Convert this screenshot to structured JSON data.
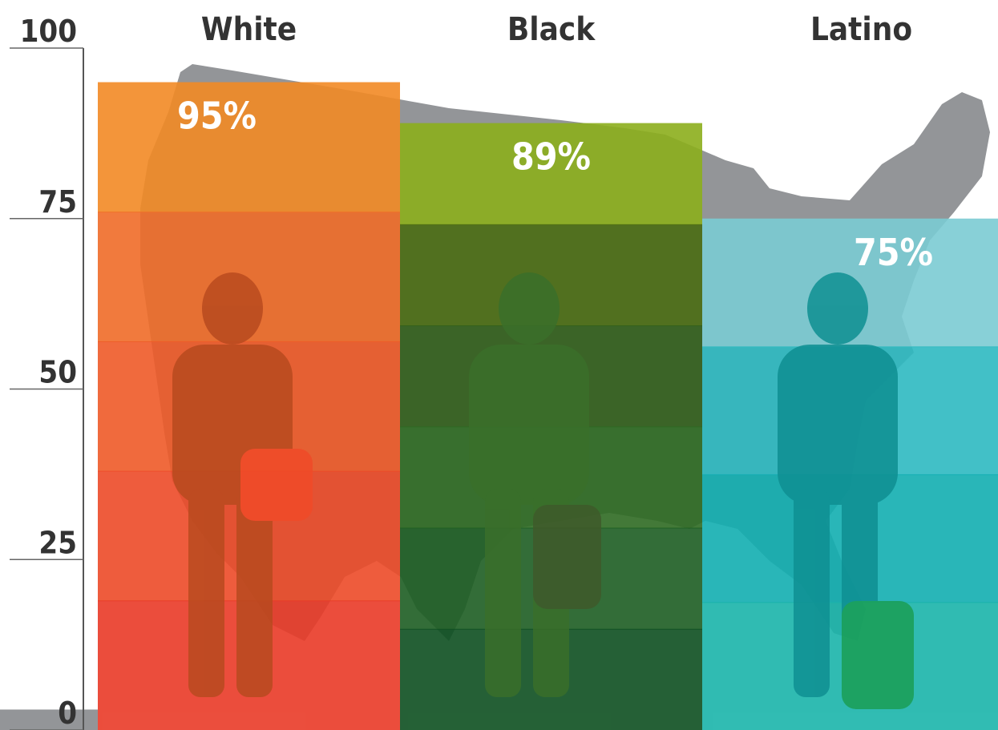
{
  "chart_data": {
    "type": "bar",
    "categories": [
      "White",
      "Black",
      "Latino"
    ],
    "values": [
      95,
      89,
      75
    ],
    "value_labels": [
      "95%",
      "89%",
      "75%"
    ],
    "ylim": [
      0,
      100
    ],
    "yticks": [
      0,
      25,
      50,
      75,
      100
    ],
    "ytick_labels": [
      "0",
      "25",
      "50",
      "75",
      "100"
    ],
    "grid": false,
    "colors": {
      "White": [
        "#f28a25",
        "#f06c28",
        "#ee5a28",
        "#ec4a28",
        "#e93a27"
      ],
      "Black": [
        "#8cae1c",
        "#4a6b12",
        "#325e1b",
        "#2f6a22",
        "#1d5d22",
        "#0d4f20"
      ],
      "Latino": [
        "#7bcbd3",
        "#2db9c1",
        "#12aeb0",
        "#1ab4aa"
      ],
      "map": "#939598",
      "axis_text": "#333333",
      "baseline_block": "#939598"
    }
  }
}
